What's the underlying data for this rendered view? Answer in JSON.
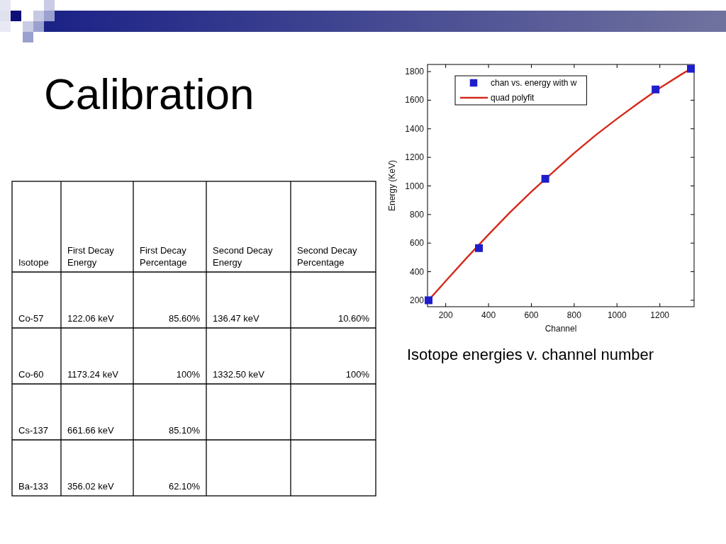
{
  "chart_data": [
    {
      "type": "other",
      "title": "Calibration",
      "categories": [
        "Isotope",
        "First Decay Energy",
        "First Decay Percentage",
        "Second Decay Energy",
        "Second Decay Percentage"
      ],
      "cell_labels": [
        [
          "Co-57",
          "122.06 keV",
          "85.60%",
          "136.47 keV",
          "10.60%"
        ],
        [
          "Co-60",
          "1173.24 keV",
          "100%",
          "1332.50 keV",
          "100%"
        ],
        [
          "Cs-137",
          "661.66 keV",
          "85.10%",
          null,
          null
        ],
        [
          "Ba-133",
          "356.02 keV",
          "62.10%",
          null,
          null
        ]
      ]
    },
    {
      "type": "scatter",
      "xlabel": "Channel",
      "ylabel": "Energy (KeV)",
      "annotations": [
        "Isotope energies v. channel number"
      ],
      "xlim": [
        115,
        1360
      ],
      "ylim": [
        155,
        1850
      ],
      "xticks": [
        200,
        400,
        600,
        800,
        1000,
        1200
      ],
      "yticks": [
        200,
        400,
        600,
        800,
        1000,
        1200,
        1400,
        1600,
        1800
      ],
      "legend": "top left",
      "series": [
        {
          "name": "chan vs. energy with w",
          "type": "scatter",
          "marker": "square",
          "color": "#1e1ecc",
          "x": [
            120,
            355,
            665,
            1180,
            1345
          ],
          "values": [
            200,
            565,
            1050,
            1675,
            1820
          ]
        },
        {
          "name": "quad polyfit",
          "type": "line",
          "marker": "none",
          "color": "#d42a1c",
          "x": [
            120,
            200,
            300,
            400,
            500,
            600,
            700,
            800,
            900,
            1000,
            1100,
            1200,
            1300,
            1345
          ],
          "values": [
            200,
            335,
            500,
            660,
            815,
            960,
            1095,
            1230,
            1355,
            1470,
            1580,
            1685,
            1780,
            1820
          ]
        }
      ]
    }
  ]
}
